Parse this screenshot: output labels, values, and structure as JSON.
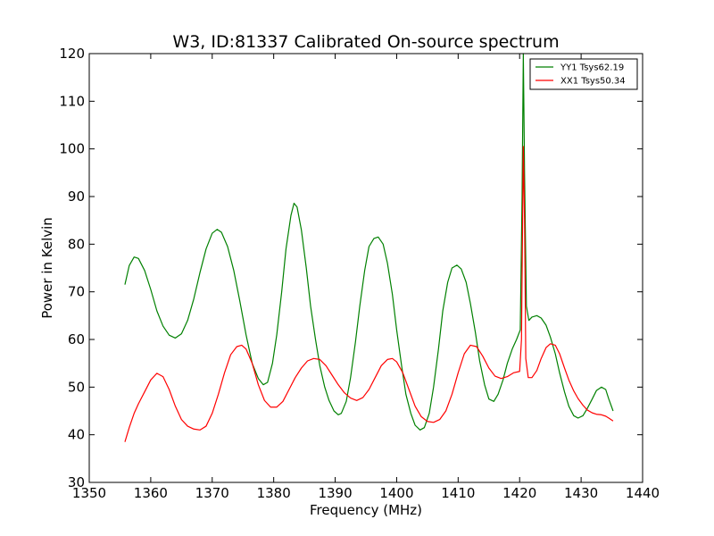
{
  "chart_data": {
    "type": "line",
    "title": "W3, ID:81337 Calibrated On-source spectrum",
    "xlabel": "Frequency (MHz)",
    "ylabel": "Power in Kelvin",
    "xlim": [
      1350,
      1440
    ],
    "ylim": [
      30,
      120
    ],
    "xticks": [
      1350,
      1360,
      1370,
      1380,
      1390,
      1400,
      1410,
      1420,
      1430,
      1440
    ],
    "yticks": [
      30,
      40,
      50,
      60,
      70,
      80,
      90,
      100,
      110,
      120
    ],
    "grid": false,
    "legend_position": "top-right",
    "series": [
      {
        "name": "YY1 Tsys62.19",
        "color": "#008000",
        "points": [
          [
            1355.8,
            71.5
          ],
          [
            1356.5,
            75.5
          ],
          [
            1357.3,
            77.3
          ],
          [
            1358.0,
            77.0
          ],
          [
            1359.0,
            74.5
          ],
          [
            1360.0,
            70.5
          ],
          [
            1361.0,
            66.0
          ],
          [
            1362.0,
            62.8
          ],
          [
            1363.0,
            60.9
          ],
          [
            1364.0,
            60.3
          ],
          [
            1365.0,
            61.2
          ],
          [
            1366.0,
            64.0
          ],
          [
            1367.0,
            68.5
          ],
          [
            1368.0,
            74.0
          ],
          [
            1369.0,
            79.0
          ],
          [
            1370.0,
            82.3
          ],
          [
            1370.8,
            83.1
          ],
          [
            1371.5,
            82.5
          ],
          [
            1372.5,
            79.5
          ],
          [
            1373.5,
            74.5
          ],
          [
            1374.5,
            68.0
          ],
          [
            1375.5,
            61.0
          ],
          [
            1376.5,
            55.0
          ],
          [
            1377.5,
            51.8
          ],
          [
            1378.3,
            50.5
          ],
          [
            1379.0,
            51.0
          ],
          [
            1379.8,
            55.0
          ],
          [
            1380.5,
            61.0
          ],
          [
            1381.3,
            70.0
          ],
          [
            1382.0,
            79.0
          ],
          [
            1382.8,
            86.0
          ],
          [
            1383.3,
            88.6
          ],
          [
            1383.8,
            87.8
          ],
          [
            1384.5,
            83.0
          ],
          [
            1385.3,
            75.0
          ],
          [
            1386.0,
            67.0
          ],
          [
            1386.8,
            60.0
          ],
          [
            1387.5,
            54.5
          ],
          [
            1388.3,
            50.0
          ],
          [
            1389.0,
            47.2
          ],
          [
            1389.8,
            45.0
          ],
          [
            1390.5,
            44.2
          ],
          [
            1391.0,
            44.5
          ],
          [
            1391.8,
            47.0
          ],
          [
            1392.5,
            52.0
          ],
          [
            1393.3,
            59.5
          ],
          [
            1394.0,
            67.0
          ],
          [
            1394.8,
            74.5
          ],
          [
            1395.5,
            79.5
          ],
          [
            1396.3,
            81.2
          ],
          [
            1397.0,
            81.5
          ],
          [
            1397.8,
            80.0
          ],
          [
            1398.5,
            76.0
          ],
          [
            1399.3,
            69.5
          ],
          [
            1400.0,
            62.0
          ],
          [
            1400.8,
            54.5
          ],
          [
            1401.5,
            48.5
          ],
          [
            1402.3,
            44.5
          ],
          [
            1403.0,
            42.0
          ],
          [
            1403.8,
            41.0
          ],
          [
            1404.5,
            41.5
          ],
          [
            1405.3,
            44.5
          ],
          [
            1406.0,
            50.0
          ],
          [
            1406.8,
            58.0
          ],
          [
            1407.5,
            66.0
          ],
          [
            1408.3,
            72.0
          ],
          [
            1409.0,
            75.0
          ],
          [
            1409.8,
            75.6
          ],
          [
            1410.5,
            74.8
          ],
          [
            1411.3,
            72.0
          ],
          [
            1412.0,
            67.5
          ],
          [
            1412.8,
            61.5
          ],
          [
            1413.5,
            55.5
          ],
          [
            1414.3,
            50.5
          ],
          [
            1415.0,
            47.5
          ],
          [
            1415.8,
            47.0
          ],
          [
            1416.5,
            48.5
          ],
          [
            1417.3,
            51.5
          ],
          [
            1418.0,
            55.0
          ],
          [
            1418.8,
            58.0
          ],
          [
            1419.5,
            60.0
          ],
          [
            1420.1,
            62.0
          ],
          [
            1420.4,
            90.0
          ],
          [
            1420.6,
            120.0
          ],
          [
            1420.8,
            95.0
          ],
          [
            1421.1,
            67.0
          ],
          [
            1421.5,
            64.0
          ],
          [
            1422.0,
            64.7
          ],
          [
            1422.8,
            65.0
          ],
          [
            1423.5,
            64.5
          ],
          [
            1424.3,
            63.0
          ],
          [
            1425.0,
            60.5
          ],
          [
            1425.8,
            57.0
          ],
          [
            1426.5,
            53.0
          ],
          [
            1427.3,
            49.0
          ],
          [
            1428.0,
            46.0
          ],
          [
            1428.8,
            44.0
          ],
          [
            1429.5,
            43.5
          ],
          [
            1430.3,
            44.0
          ],
          [
            1431.0,
            45.5
          ],
          [
            1431.8,
            47.5
          ],
          [
            1432.5,
            49.3
          ],
          [
            1433.3,
            50.0
          ],
          [
            1434.0,
            49.5
          ],
          [
            1434.5,
            47.5
          ],
          [
            1435.2,
            45.0
          ]
        ]
      },
      {
        "name": "XX1 Tsys50.34",
        "color": "#ff0000",
        "points": [
          [
            1355.8,
            38.5
          ],
          [
            1356.5,
            41.5
          ],
          [
            1357.3,
            44.5
          ],
          [
            1358.0,
            46.5
          ],
          [
            1359.0,
            49.0
          ],
          [
            1360.0,
            51.5
          ],
          [
            1361.0,
            52.9
          ],
          [
            1362.0,
            52.2
          ],
          [
            1363.0,
            49.5
          ],
          [
            1364.0,
            46.0
          ],
          [
            1365.0,
            43.2
          ],
          [
            1366.0,
            41.8
          ],
          [
            1367.0,
            41.2
          ],
          [
            1368.0,
            41.0
          ],
          [
            1369.0,
            41.8
          ],
          [
            1370.0,
            44.5
          ],
          [
            1371.0,
            48.5
          ],
          [
            1372.0,
            53.0
          ],
          [
            1373.0,
            56.8
          ],
          [
            1374.0,
            58.5
          ],
          [
            1374.8,
            58.8
          ],
          [
            1375.5,
            58.0
          ],
          [
            1376.5,
            55.0
          ],
          [
            1377.5,
            50.5
          ],
          [
            1378.5,
            47.2
          ],
          [
            1379.5,
            45.8
          ],
          [
            1380.5,
            45.8
          ],
          [
            1381.5,
            47.0
          ],
          [
            1382.5,
            49.5
          ],
          [
            1383.5,
            52.0
          ],
          [
            1384.5,
            54.0
          ],
          [
            1385.5,
            55.5
          ],
          [
            1386.5,
            56.0
          ],
          [
            1387.5,
            55.8
          ],
          [
            1388.5,
            54.5
          ],
          [
            1389.5,
            52.5
          ],
          [
            1390.5,
            50.5
          ],
          [
            1391.5,
            48.8
          ],
          [
            1392.5,
            47.7
          ],
          [
            1393.5,
            47.2
          ],
          [
            1394.5,
            47.8
          ],
          [
            1395.5,
            49.5
          ],
          [
            1396.5,
            52.0
          ],
          [
            1397.5,
            54.5
          ],
          [
            1398.5,
            55.8
          ],
          [
            1399.3,
            56.0
          ],
          [
            1400.0,
            55.3
          ],
          [
            1401.0,
            53.0
          ],
          [
            1402.0,
            49.5
          ],
          [
            1403.0,
            46.0
          ],
          [
            1404.0,
            43.8
          ],
          [
            1405.0,
            42.8
          ],
          [
            1406.0,
            42.6
          ],
          [
            1407.0,
            43.2
          ],
          [
            1408.0,
            45.0
          ],
          [
            1409.0,
            48.5
          ],
          [
            1410.0,
            53.0
          ],
          [
            1411.0,
            57.0
          ],
          [
            1412.0,
            58.8
          ],
          [
            1413.0,
            58.5
          ],
          [
            1414.0,
            56.5
          ],
          [
            1415.0,
            54.0
          ],
          [
            1416.0,
            52.3
          ],
          [
            1417.0,
            51.8
          ],
          [
            1418.0,
            52.2
          ],
          [
            1419.0,
            53.0
          ],
          [
            1420.0,
            53.3
          ],
          [
            1420.3,
            60.0
          ],
          [
            1420.6,
            100.5
          ],
          [
            1420.8,
            85.0
          ],
          [
            1421.0,
            56.0
          ],
          [
            1421.4,
            52.0
          ],
          [
            1422.0,
            52.0
          ],
          [
            1422.8,
            53.5
          ],
          [
            1423.5,
            56.0
          ],
          [
            1424.3,
            58.3
          ],
          [
            1425.0,
            59.1
          ],
          [
            1425.8,
            58.8
          ],
          [
            1426.5,
            57.0
          ],
          [
            1427.3,
            54.0
          ],
          [
            1428.0,
            51.5
          ],
          [
            1428.8,
            49.2
          ],
          [
            1429.5,
            47.6
          ],
          [
            1430.3,
            46.2
          ],
          [
            1431.0,
            45.2
          ],
          [
            1431.8,
            44.6
          ],
          [
            1432.5,
            44.3
          ],
          [
            1433.3,
            44.2
          ],
          [
            1434.0,
            43.9
          ],
          [
            1434.5,
            43.5
          ],
          [
            1435.2,
            42.9
          ]
        ]
      }
    ]
  }
}
